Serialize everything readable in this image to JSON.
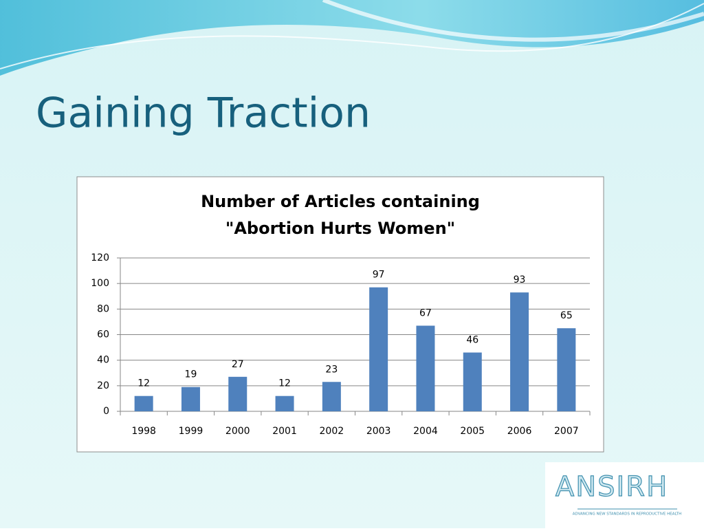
{
  "slide_title": "Gaining Traction",
  "chart_data": {
    "type": "bar",
    "title": [
      "Number of Articles containing",
      "\"Abortion Hurts Women\""
    ],
    "categories": [
      "1998",
      "1999",
      "2000",
      "2001",
      "2002",
      "2003",
      "2004",
      "2005",
      "2006",
      "2007"
    ],
    "values": [
      12,
      19,
      27,
      12,
      23,
      97,
      67,
      46,
      93,
      65
    ],
    "color": "#4f81bd",
    "ylim": [
      0,
      120
    ],
    "yticks": [
      0,
      20,
      40,
      60,
      80,
      100,
      120
    ],
    "grid": true
  },
  "logo": {
    "name": "ANSIRH",
    "tagline": "ADVANCING NEW STANDARDS IN REPRODUCTIVE HEALTH"
  }
}
